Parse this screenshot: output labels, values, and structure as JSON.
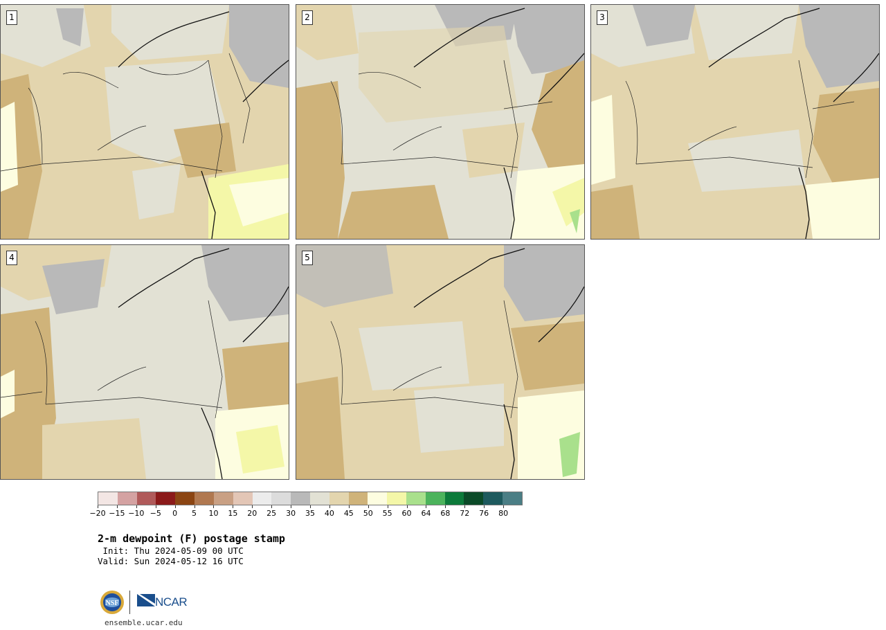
{
  "panels": [
    {
      "label": "1"
    },
    {
      "label": "2"
    },
    {
      "label": "3"
    },
    {
      "label": "4"
    },
    {
      "label": "5"
    }
  ],
  "colorbar": {
    "colors": [
      "#f3e6e4",
      "#d4a2a2",
      "#b05a5a",
      "#8b1a1a",
      "#8b4513",
      "#b07850",
      "#c9a084",
      "#e3c6b6",
      "#ececec",
      "#dcdcdc",
      "#b9b9b9",
      "#e2e1d4",
      "#e3d5ae",
      "#cfb37a",
      "#fdfde0",
      "#f4f7a8",
      "#a9e08c",
      "#4cb35c",
      "#0c7a3a",
      "#0b4a28",
      "#1e5a5e",
      "#4b7e85"
    ],
    "tick_labels": [
      "−20",
      "−15",
      "−10",
      "−5",
      "0",
      "5",
      "10",
      "15",
      "20",
      "25",
      "30",
      "35",
      "40",
      "45",
      "50",
      "55",
      "60",
      "64",
      "68",
      "72",
      "76",
      "80"
    ]
  },
  "title": {
    "main": "2-m dewpoint (F) postage stamp",
    "init": " Init: Thu 2024-05-09 00 UTC",
    "valid": "Valid: Sun 2024-05-12 16 UTC"
  },
  "logos": {
    "nsf_text": "NSF",
    "ncar_text": "NCAR"
  },
  "footer": {
    "site": "ensemble.ucar.edu"
  }
}
